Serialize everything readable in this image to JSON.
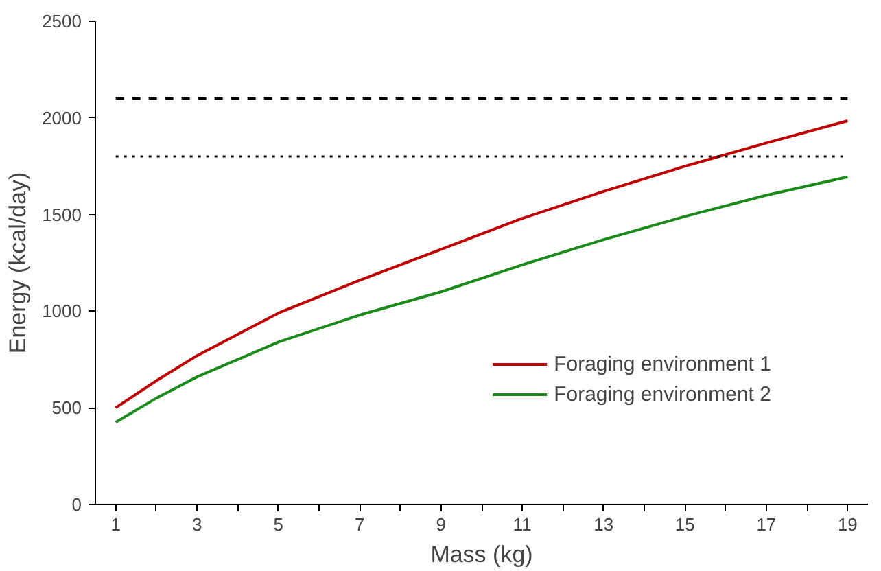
{
  "chart_data": {
    "type": "line",
    "xlabel": "Mass (kg)",
    "ylabel": "Energy (kcal/day)",
    "x": [
      1,
      2,
      3,
      5,
      7,
      9,
      11,
      13,
      15,
      17,
      19
    ],
    "series": [
      {
        "name": "Foraging environment 1",
        "color": "#c00000",
        "values": [
          500,
          640,
          770,
          990,
          1160,
          1320,
          1480,
          1620,
          1750,
          1870,
          1985
        ]
      },
      {
        "name": "Foraging environment 2",
        "color": "#1a8a1a",
        "values": [
          425,
          550,
          660,
          840,
          980,
          1100,
          1240,
          1370,
          1490,
          1600,
          1695
        ]
      }
    ],
    "xlim": [
      0.5,
      19.5
    ],
    "xticks": [
      1,
      {
        "value": 2,
        "label": null
      },
      3,
      {
        "value": 4,
        "label": null
      },
      5,
      {
        "value": 6,
        "label": null
      },
      7,
      {
        "value": 8,
        "label": null
      },
      9,
      {
        "value": 10,
        "label": null
      },
      11,
      {
        "value": 12,
        "label": null
      },
      13,
      {
        "value": 14,
        "label": null
      },
      15,
      {
        "value": 16,
        "label": null
      },
      17,
      {
        "value": 18,
        "label": null
      },
      19
    ],
    "ylim": [
      0,
      2500
    ],
    "yticks": [
      0,
      500,
      1000,
      1500,
      2000,
      2500
    ],
    "ref_lines": [
      {
        "axis": "y",
        "value": 2100,
        "label": null,
        "color": "#000000",
        "line_style": "dashed"
      },
      {
        "axis": "y",
        "value": 1800,
        "label": null,
        "color": "#000000",
        "line_style": "dotted"
      }
    ],
    "grid": false,
    "legend": "right",
    "marker": "none",
    "line_style": "solid"
  }
}
